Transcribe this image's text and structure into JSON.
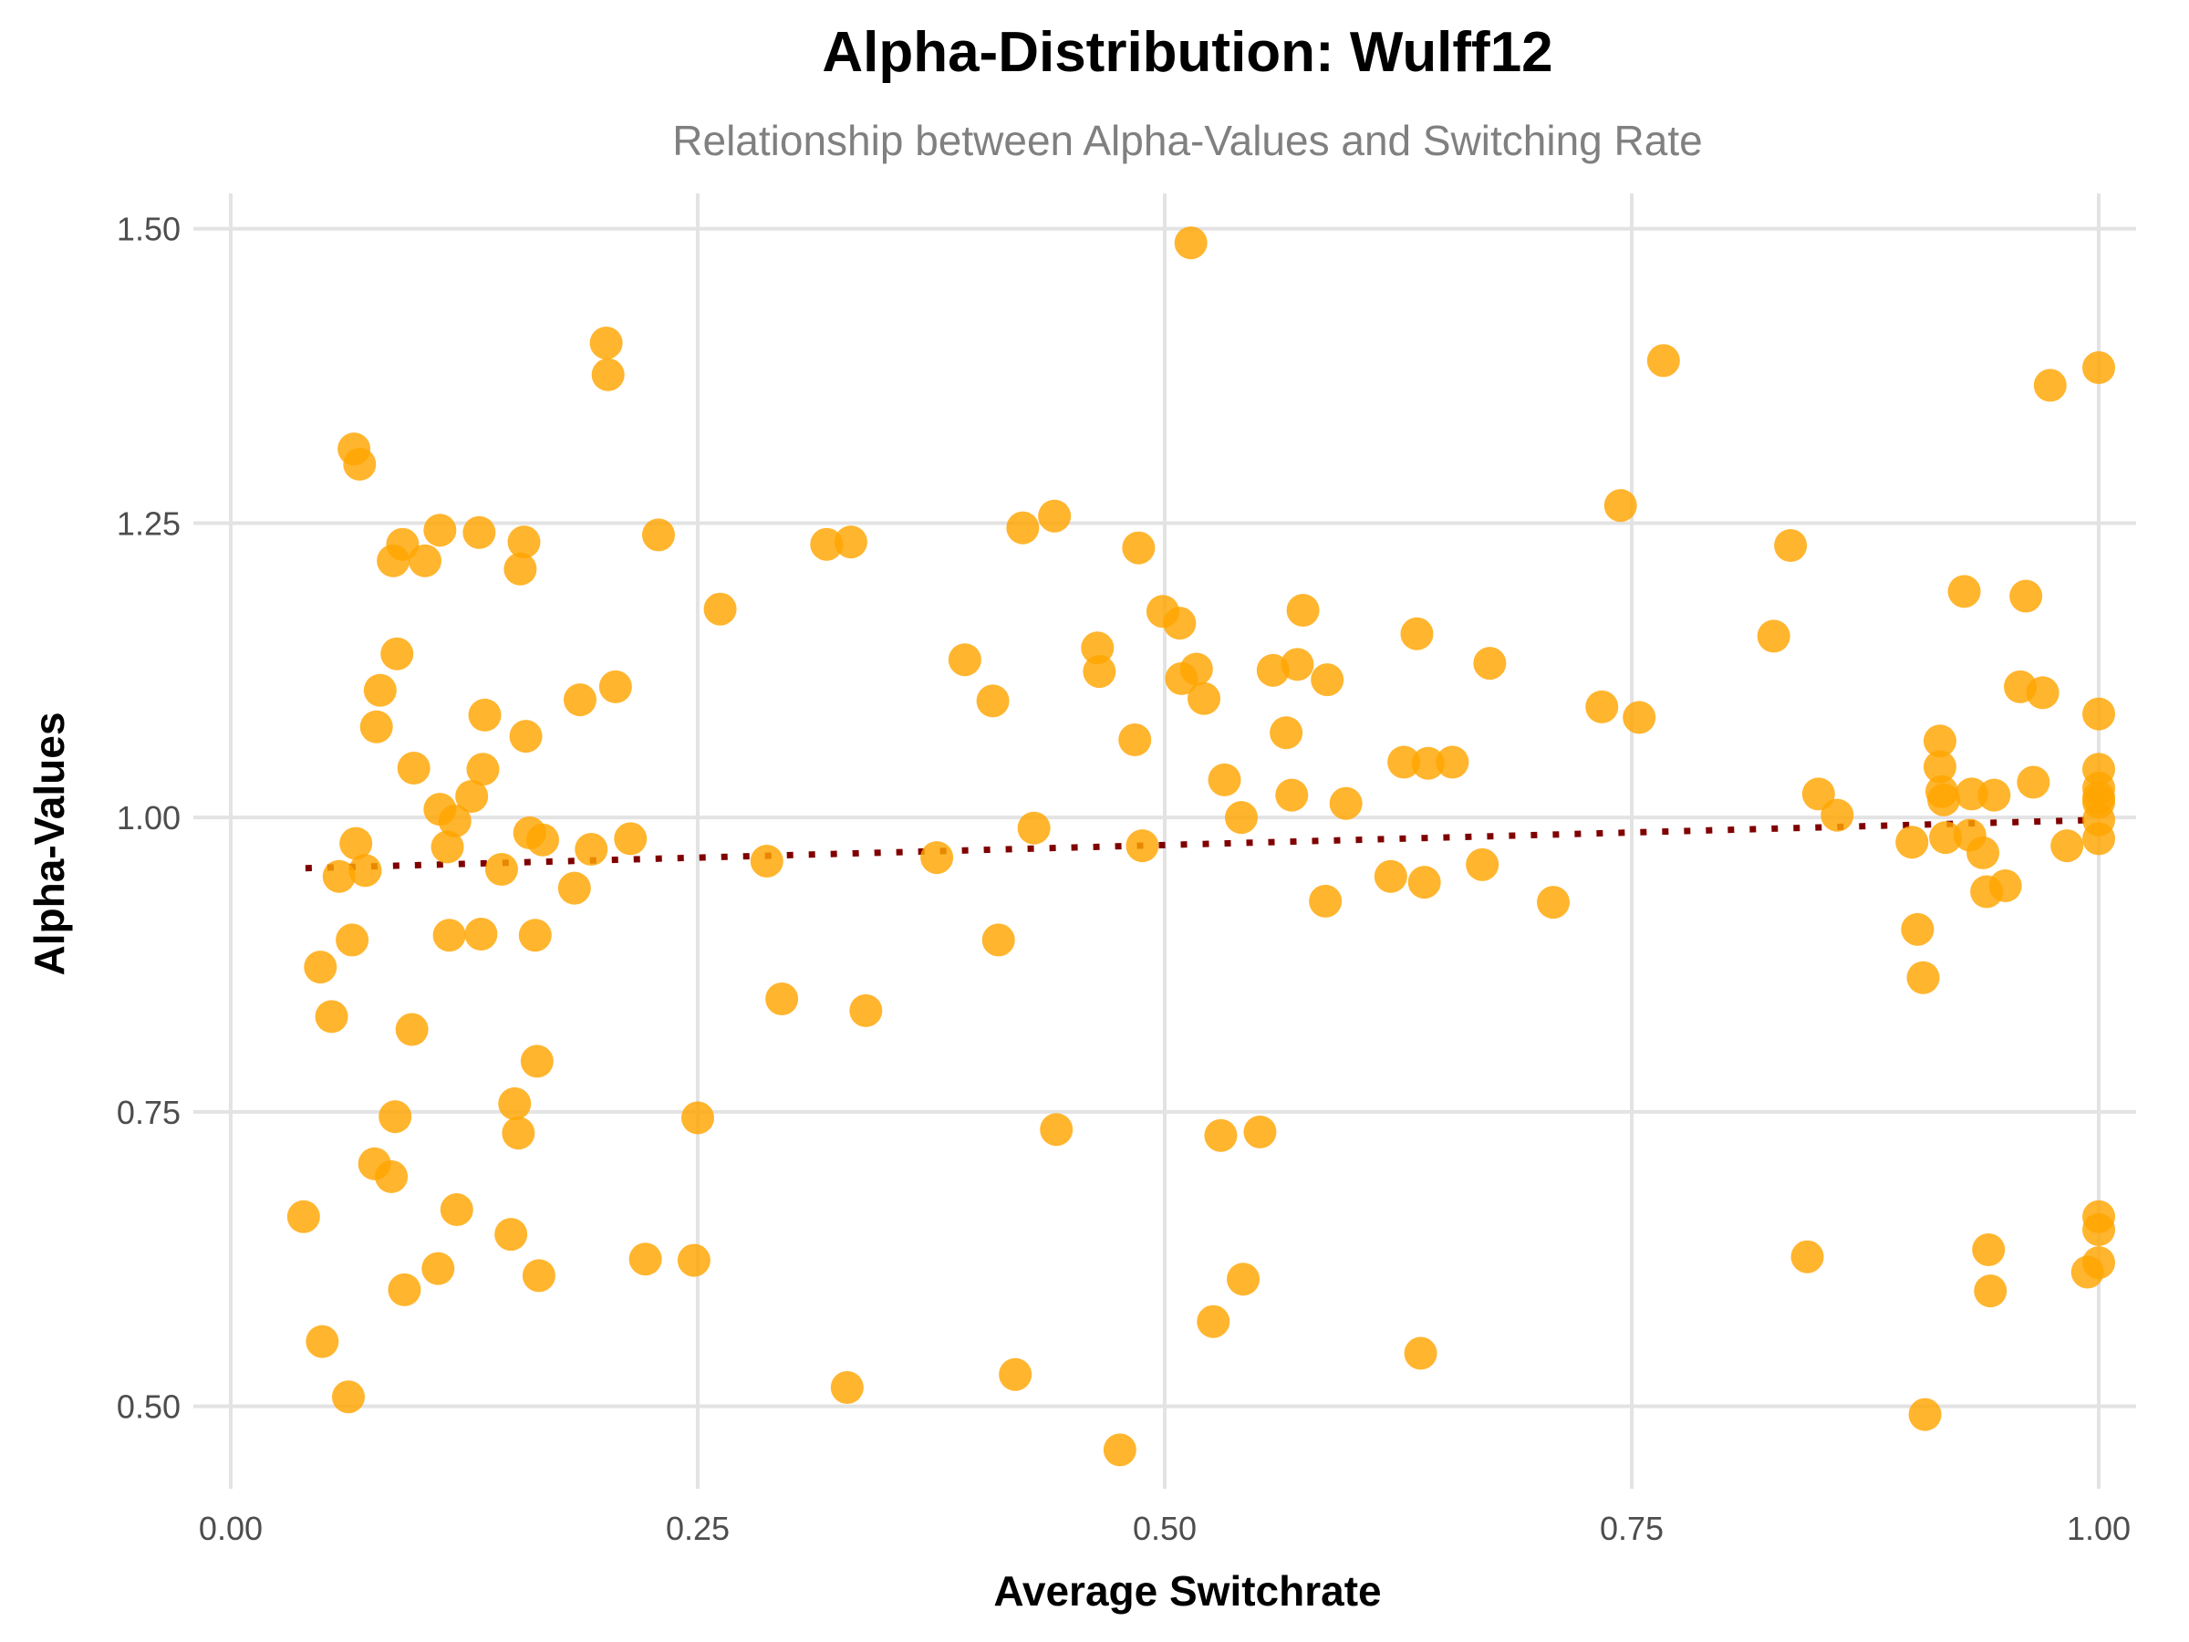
{
  "colors": {
    "points": "#FFA500",
    "trend": "#800000",
    "grid": "#E3E3E3",
    "background": "#FFFFFF"
  },
  "chart_data": {
    "type": "scatter",
    "title": "Alpha-Distribution: Wulff12",
    "subtitle": "Relationship between Alpha-Values and Switching Rate",
    "xlabel": "Average Switchrate",
    "ylabel": "Alpha-Values",
    "xlim": [
      -0.02,
      1.02
    ],
    "ylim": [
      0.43,
      1.53
    ],
    "xticks": [
      0,
      0.25,
      0.5,
      0.75,
      1
    ],
    "xtick_labels": [
      "0.00",
      "0.25",
      "0.50",
      "0.75",
      "1.00"
    ],
    "yticks": [
      0.5,
      0.75,
      1.0,
      1.25,
      1.5
    ],
    "ytick_labels": [
      "0.50",
      "0.75",
      "1.00",
      "1.25",
      "1.50"
    ],
    "grid": true,
    "legend": "none",
    "trend_line": {
      "style": "dotted",
      "x": [
        0.04,
        1.0
      ],
      "y": [
        0.957,
        0.998
      ]
    },
    "points": [
      [
        0.039,
        0.661
      ],
      [
        0.048,
        0.873
      ],
      [
        0.049,
        0.555
      ],
      [
        0.054,
        0.831
      ],
      [
        0.058,
        0.95
      ],
      [
        0.063,
        0.508
      ],
      [
        0.065,
        0.896
      ],
      [
        0.066,
        1.313
      ],
      [
        0.067,
        0.978
      ],
      [
        0.069,
        1.3
      ],
      [
        0.072,
        0.955
      ],
      [
        0.077,
        0.706
      ],
      [
        0.078,
        1.077
      ],
      [
        0.08,
        1.108
      ],
      [
        0.086,
        0.695
      ],
      [
        0.087,
        1.218
      ],
      [
        0.088,
        0.746
      ],
      [
        0.089,
        1.139
      ],
      [
        0.092,
        1.232
      ],
      [
        0.093,
        0.599
      ],
      [
        0.097,
        0.82
      ],
      [
        0.098,
        1.042
      ],
      [
        0.104,
        1.218
      ],
      [
        0.111,
        0.617
      ],
      [
        0.112,
        1.007
      ],
      [
        0.112,
        1.244
      ],
      [
        0.116,
        0.975
      ],
      [
        0.117,
        0.9
      ],
      [
        0.12,
        0.997
      ],
      [
        0.121,
        0.667
      ],
      [
        0.129,
        1.018
      ],
      [
        0.133,
        1.242
      ],
      [
        0.134,
        0.901
      ],
      [
        0.135,
        1.041
      ],
      [
        0.136,
        1.087
      ],
      [
        0.145,
        0.956
      ],
      [
        0.15,
        0.646
      ],
      [
        0.152,
        0.757
      ],
      [
        0.154,
        0.732
      ],
      [
        0.155,
        1.211
      ],
      [
        0.157,
        1.234
      ],
      [
        0.158,
        1.069
      ],
      [
        0.16,
        0.987
      ],
      [
        0.163,
        0.9
      ],
      [
        0.164,
        0.793
      ],
      [
        0.165,
        0.611
      ],
      [
        0.167,
        0.981
      ],
      [
        0.184,
        0.94
      ],
      [
        0.187,
        1.1
      ],
      [
        0.193,
        0.973
      ],
      [
        0.201,
        1.403
      ],
      [
        0.202,
        1.376
      ],
      [
        0.206,
        1.111
      ],
      [
        0.214,
        0.982
      ],
      [
        0.222,
        0.625
      ],
      [
        0.229,
        1.24
      ],
      [
        0.248,
        0.624
      ],
      [
        0.25,
        0.745
      ],
      [
        0.262,
        1.177
      ],
      [
        0.287,
        0.963
      ],
      [
        0.295,
        0.846
      ],
      [
        0.319,
        1.232
      ],
      [
        0.33,
        0.516
      ],
      [
        0.332,
        1.234
      ],
      [
        0.34,
        0.836
      ],
      [
        0.378,
        0.966
      ],
      [
        0.393,
        1.134
      ],
      [
        0.408,
        1.099
      ],
      [
        0.411,
        0.896
      ],
      [
        0.42,
        0.527
      ],
      [
        0.424,
        1.246
      ],
      [
        0.43,
        0.991
      ],
      [
        0.441,
        1.256
      ],
      [
        0.442,
        0.735
      ],
      [
        0.464,
        1.144
      ],
      [
        0.465,
        1.124
      ],
      [
        0.476,
        0.463
      ],
      [
        0.484,
        1.066
      ],
      [
        0.486,
        1.229
      ],
      [
        0.488,
        0.976
      ],
      [
        0.499,
        1.175
      ],
      [
        0.508,
        1.165
      ],
      [
        0.509,
        1.118
      ],
      [
        0.514,
        1.488
      ],
      [
        0.517,
        1.126
      ],
      [
        0.521,
        1.101
      ],
      [
        0.526,
        0.572
      ],
      [
        0.53,
        0.73
      ],
      [
        0.532,
        1.032
      ],
      [
        0.541,
        1.0
      ],
      [
        0.542,
        0.608
      ],
      [
        0.551,
        0.733
      ],
      [
        0.558,
        1.125
      ],
      [
        0.565,
        1.072
      ],
      [
        0.568,
        1.019
      ],
      [
        0.571,
        1.13
      ],
      [
        0.574,
        1.176
      ],
      [
        0.586,
        0.929
      ],
      [
        0.587,
        1.117
      ],
      [
        0.597,
        1.012
      ],
      [
        0.621,
        0.95
      ],
      [
        0.628,
        1.047
      ],
      [
        0.635,
        1.156
      ],
      [
        0.637,
        0.545
      ],
      [
        0.639,
        0.945
      ],
      [
        0.641,
        1.046
      ],
      [
        0.654,
        1.047
      ],
      [
        0.67,
        0.96
      ],
      [
        0.674,
        1.131
      ],
      [
        0.708,
        0.928
      ],
      [
        0.734,
        1.094
      ],
      [
        0.744,
        1.265
      ],
      [
        0.754,
        1.085
      ],
      [
        0.767,
        1.388
      ],
      [
        0.826,
        1.154
      ],
      [
        0.835,
        1.231
      ],
      [
        0.844,
        0.627
      ],
      [
        0.85,
        1.02
      ],
      [
        0.86,
        1.002
      ],
      [
        0.9,
        0.979
      ],
      [
        0.903,
        0.905
      ],
      [
        0.906,
        0.864
      ],
      [
        0.907,
        0.493
      ],
      [
        0.915,
        1.065
      ],
      [
        0.915,
        1.043
      ],
      [
        0.916,
        1.022
      ],
      [
        0.917,
        1.015
      ],
      [
        0.918,
        0.983
      ],
      [
        0.928,
        1.192
      ],
      [
        0.931,
        0.985
      ],
      [
        0.932,
        1.02
      ],
      [
        0.938,
        0.97
      ],
      [
        0.94,
        0.937
      ],
      [
        0.941,
        0.633
      ],
      [
        0.942,
        0.598
      ],
      [
        0.944,
        1.019
      ],
      [
        0.95,
        0.942
      ],
      [
        0.958,
        1.111
      ],
      [
        0.961,
        1.188
      ],
      [
        0.965,
        1.03
      ],
      [
        0.97,
        1.106
      ],
      [
        0.974,
        1.367
      ],
      [
        0.983,
        0.976
      ],
      [
        0.994,
        0.614
      ],
      [
        1.0,
        1.382
      ],
      [
        1.0,
        1.088
      ],
      [
        1.0,
        1.041
      ],
      [
        1.0,
        1.025
      ],
      [
        1.0,
        1.017
      ],
      [
        1.0,
        1.013
      ],
      [
        1.0,
        0.998
      ],
      [
        1.0,
        0.982
      ],
      [
        1.0,
        0.661
      ],
      [
        1.0,
        0.65
      ],
      [
        1.0,
        0.622
      ]
    ]
  }
}
